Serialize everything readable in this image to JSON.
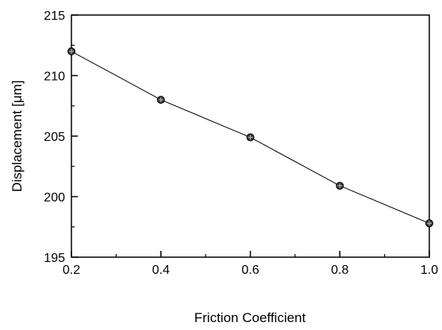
{
  "chart_data": {
    "type": "line",
    "title": "",
    "xlabel": "Friction Coefficient",
    "ylabel": "Displacement [μm]",
    "xlim": [
      0.2,
      1.0
    ],
    "ylim": [
      195,
      215
    ],
    "x_ticks": [
      "0.2",
      "0.4",
      "0.6",
      "0.8",
      "1.0"
    ],
    "y_ticks": [
      "195",
      "200",
      "205",
      "210",
      "215"
    ],
    "grid": false,
    "legend": "none",
    "series": [
      {
        "x": [
          0.2,
          0.4,
          0.6,
          0.8,
          1.0
        ],
        "y": [
          212.0,
          208.0,
          204.9,
          200.9,
          197.8
        ],
        "line_color": "#000000",
        "marker": "circle"
      }
    ]
  }
}
